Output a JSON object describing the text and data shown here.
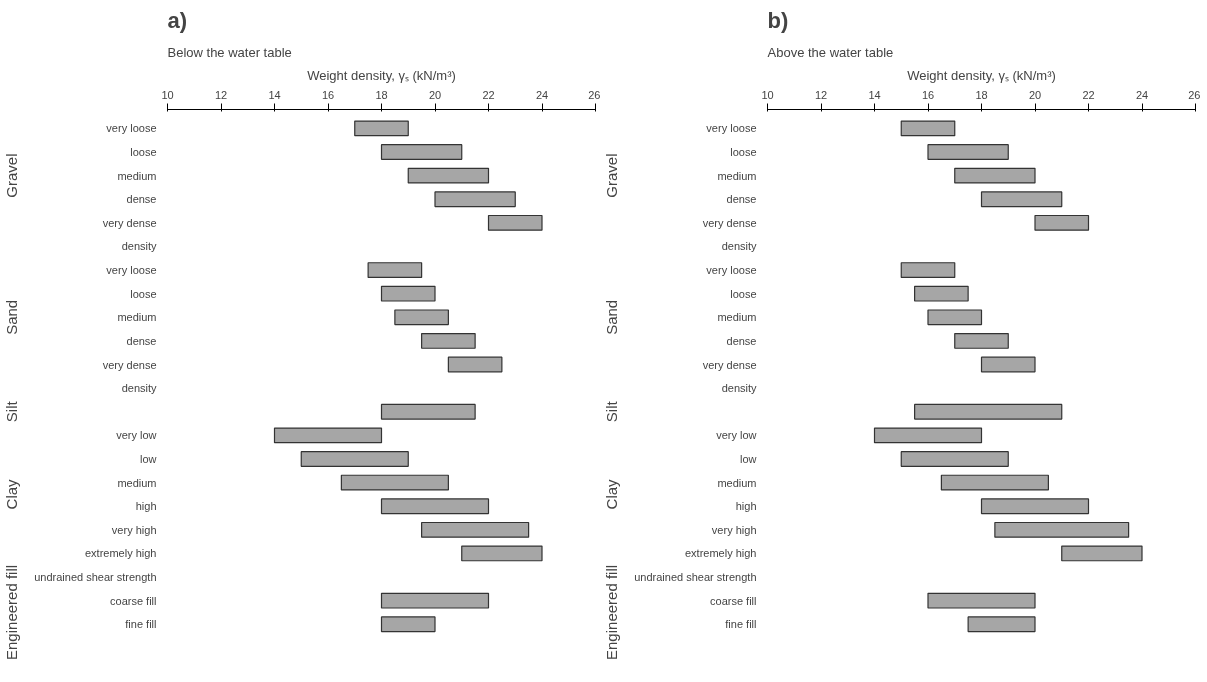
{
  "chart_data": [
    {
      "type": "bar",
      "orientation": "horizontal",
      "title": "a)",
      "subtitle": "Below the water table",
      "xlabel": "Weight density, γₛ (kN/m³)",
      "xlim": [
        10,
        26
      ],
      "xticks": [
        10,
        12,
        14,
        16,
        18,
        20,
        22,
        24,
        26
      ],
      "grid": false,
      "color": "#a6a6a6",
      "categories": [
        "very loose",
        "loose",
        "medium",
        "dense",
        "very dense",
        null,
        "very loose",
        "loose",
        "medium",
        "dense",
        "very dense",
        null,
        null,
        "very low",
        "low",
        "medium",
        "high",
        "very high",
        "extremely high",
        null,
        "coarse fill",
        "fine fill"
      ],
      "base": [
        17,
        18,
        19,
        20,
        22,
        null,
        17.5,
        18,
        18.5,
        19.5,
        20.5,
        null,
        18,
        14,
        15,
        16.5,
        18,
        19.5,
        21,
        null,
        18,
        18
      ],
      "values": [
        2,
        3,
        3,
        3,
        2,
        null,
        2,
        2,
        2,
        2,
        2,
        null,
        3.5,
        4,
        4,
        4,
        4,
        4,
        3,
        null,
        4,
        2
      ],
      "annotations": [
        "Gravel",
        "density",
        "Sand",
        "density",
        "Silt",
        "Clay",
        "undrained shear strength",
        "Engineered fill"
      ]
    },
    {
      "type": "bar",
      "orientation": "horizontal",
      "title": "b)",
      "subtitle": "Above the water table",
      "xlabel": "Weight density, γₛ (kN/m³)",
      "xlim": [
        10,
        26
      ],
      "xticks": [
        10,
        12,
        14,
        16,
        18,
        20,
        22,
        24,
        26
      ],
      "grid": false,
      "color": "#a6a6a6",
      "categories": [
        "very loose",
        "loose",
        "medium",
        "dense",
        "very dense",
        null,
        "very loose",
        "loose",
        "medium",
        "dense",
        "very dense",
        null,
        null,
        "very low",
        "low",
        "medium",
        "high",
        "very high",
        "extremely high",
        null,
        "coarse fill",
        "fine fill"
      ],
      "base": [
        15,
        16,
        17,
        18,
        20,
        null,
        15,
        15.5,
        16,
        17,
        18,
        null,
        15.5,
        14,
        15,
        16.5,
        18,
        18.5,
        21,
        null,
        16,
        17.5
      ],
      "values": [
        2,
        3,
        3,
        3,
        2,
        null,
        2,
        2,
        2,
        2,
        2,
        null,
        5.5,
        4,
        4,
        4,
        4,
        5,
        3,
        null,
        4,
        2.5
      ],
      "annotations": [
        "Gravel",
        "density",
        "Sand",
        "density",
        "Silt",
        "Clay",
        "undrained shear strength",
        "Engineered fill"
      ]
    }
  ]
}
